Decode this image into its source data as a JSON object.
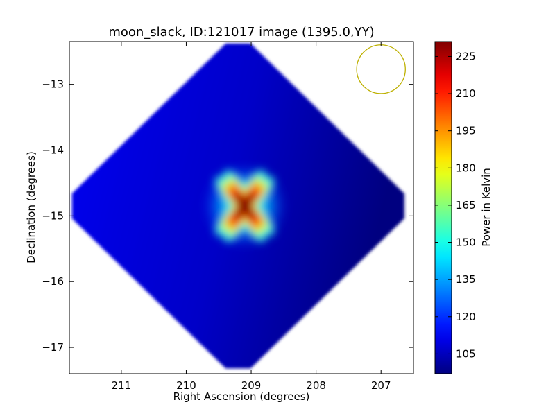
{
  "chart_data": {
    "type": "heatmap",
    "title": "moon_slack, ID:121017 image (1395.0,YY)",
    "xlabel": "Right Ascension (degrees)",
    "ylabel": "Declination (degrees)",
    "x_ticks": [
      "211",
      "210",
      "209",
      "208",
      "207"
    ],
    "y_ticks": [
      "−13",
      "−14",
      "−15",
      "−16",
      "−17"
    ],
    "x_tick_values": [
      211,
      210,
      209,
      208,
      207
    ],
    "y_tick_values": [
      -13,
      -14,
      -15,
      -16,
      -17
    ],
    "xlim": [
      211.8,
      206.5
    ],
    "ylim": [
      -17.4,
      -12.35
    ],
    "x_axis_inverted": true,
    "grid": false,
    "colorbar": {
      "label": "Power in Kelvin",
      "range": [
        97,
        231
      ],
      "ticks": [
        "225",
        "210",
        "195",
        "180",
        "165",
        "150",
        "135",
        "120",
        "105"
      ],
      "tick_values": [
        225,
        210,
        195,
        180,
        165,
        150,
        135,
        120,
        105
      ],
      "colormap": "jet"
    },
    "field": {
      "shape": "diamond",
      "center": [
        209.2,
        -14.85
      ],
      "half_width_deg": 2.56,
      "half_height_deg": 2.47,
      "background_level_range": [
        97,
        112
      ],
      "peak_level": 231,
      "peak_center": [
        209.1,
        -14.85
      ]
    },
    "beam_marker": {
      "shape": "circle",
      "center": [
        207.0,
        -12.77
      ],
      "radius_deg": 0.37,
      "color": "#bdb000"
    }
  }
}
